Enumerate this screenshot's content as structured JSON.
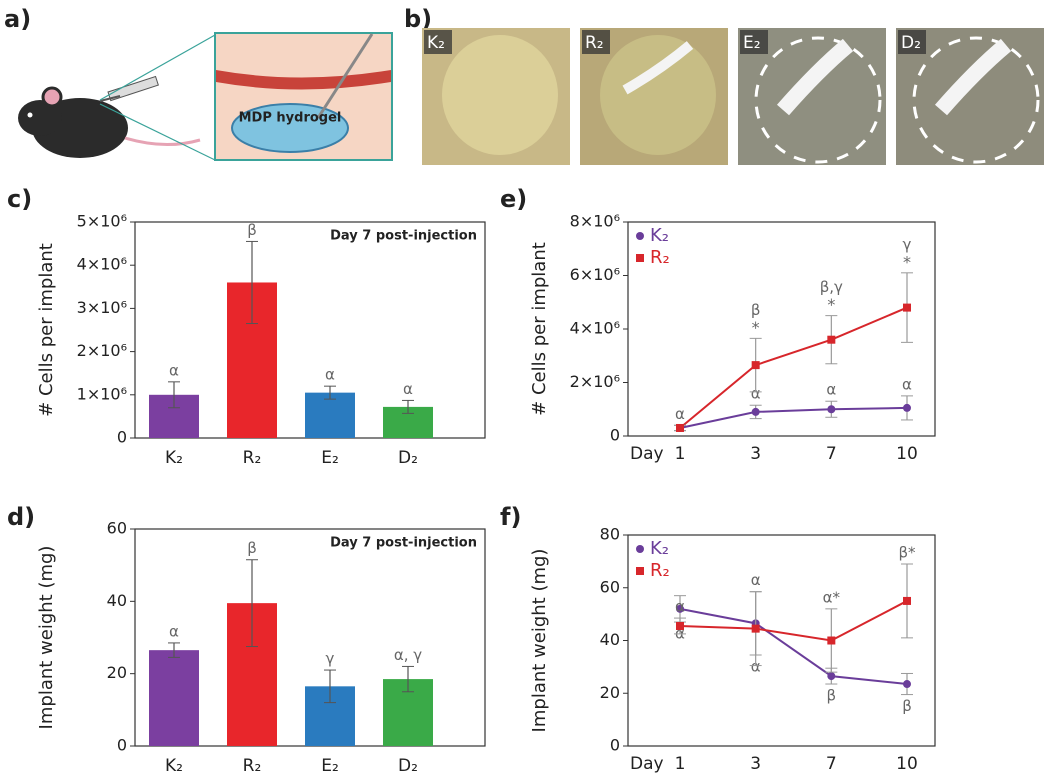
{
  "panels": {
    "a": "a)",
    "b": "b)"
  },
  "figure_a": {
    "hydrogel_label": "MDP hydrogel"
  },
  "figure_b": {
    "labels": [
      "K₂",
      "R₂",
      "E₂",
      "D₂"
    ]
  },
  "chart_data": [
    {
      "type": "bar",
      "panel_label": "c)",
      "title": "Day 7 post-injection",
      "y_label": "# Cells per implant",
      "categories": [
        "K₂",
        "R₂",
        "E₂",
        "D₂"
      ],
      "values": [
        1000000,
        3600000,
        1050000,
        720000
      ],
      "errors": [
        300000,
        950000,
        150000,
        150000
      ],
      "annotations": [
        "α",
        "β",
        "α",
        "α"
      ],
      "colors": [
        "#7b3fa0",
        "#e8262b",
        "#2a7bbf",
        "#3aaa48"
      ],
      "ylim": [
        0,
        5000000
      ],
      "yticks": [
        0,
        {
          "value": 1000000,
          "label": "1×10⁶"
        },
        {
          "value": 2000000,
          "label": "2×10⁶"
        },
        {
          "value": 3000000,
          "label": "3×10⁶"
        },
        {
          "value": 4000000,
          "label": "4×10⁶"
        },
        {
          "value": 5000000,
          "label": "5×10⁶"
        }
      ]
    },
    {
      "type": "bar",
      "panel_label": "d)",
      "title": "Day 7 post-injection",
      "y_label": "Implant weight (mg)",
      "categories": [
        "K₂",
        "R₂",
        "E₂",
        "D₂"
      ],
      "values": [
        26.5,
        39.5,
        16.5,
        18.5
      ],
      "errors": [
        2,
        12,
        4.5,
        3.5
      ],
      "annotations": [
        "α",
        "β",
        "γ",
        "α, γ"
      ],
      "colors": [
        "#7b3fa0",
        "#e8262b",
        "#2a7bbf",
        "#3aaa48"
      ],
      "ylim": [
        0,
        60
      ],
      "yticks": [
        0,
        20,
        40,
        60
      ]
    },
    {
      "type": "line",
      "panel_label": "e)",
      "y_label": "# Cells per implant",
      "x_label": "Day",
      "categories": [
        "1",
        "3",
        "7",
        "10"
      ],
      "legend": "upper left",
      "series": [
        {
          "name": "K₂",
          "color": "#6a3d9a",
          "marker": "circle",
          "annotation_position": "above",
          "values": [
            300000,
            900000,
            1000000,
            1050000
          ],
          "errors": [
            100000,
            250000,
            300000,
            450000
          ],
          "annotations": [
            "α",
            "α",
            "α",
            "α"
          ]
        },
        {
          "name": "R₂",
          "color": "#d7262b",
          "marker": "square",
          "annotation_position": "above",
          "values": [
            300000,
            2650000,
            3600000,
            4800000
          ],
          "errors": [
            100000,
            1000000,
            900000,
            1300000
          ],
          "annotations": [
            null,
            "β",
            "β,γ",
            "γ"
          ],
          "significance": [
            null,
            "*",
            "*",
            "*"
          ]
        }
      ],
      "ylim": [
        0,
        8000000
      ],
      "yticks": [
        0,
        {
          "value": 2000000,
          "label": "2×10⁶"
        },
        {
          "value": 4000000,
          "label": "4×10⁶"
        },
        {
          "value": 6000000,
          "label": "6×10⁶"
        },
        {
          "value": 8000000,
          "label": "8×10⁶"
        }
      ]
    },
    {
      "type": "line",
      "panel_label": "f)",
      "y_label": "Implant weight (mg)",
      "x_label": "Day",
      "categories": [
        "1",
        "3",
        "7",
        "10"
      ],
      "legend": "upper left",
      "series": [
        {
          "name": "K₂",
          "color": "#6a3d9a",
          "marker": "circle",
          "annotation_position": "below",
          "values": [
            52,
            46.5,
            26.5,
            23.5
          ],
          "errors": [
            5,
            12,
            3,
            4
          ],
          "annotations": [
            "α",
            "α",
            "β",
            "β"
          ]
        },
        {
          "name": "R₂",
          "color": "#d7262b",
          "marker": "square",
          "annotation_position": "above",
          "values": [
            45.5,
            44.5,
            40,
            55
          ],
          "errors": [
            3,
            14,
            12,
            14
          ],
          "annotations": [
            "α",
            "α",
            "α*",
            "β*"
          ]
        }
      ],
      "ylim": [
        0,
        80
      ],
      "yticks": [
        0,
        20,
        40,
        60,
        80
      ]
    }
  ]
}
